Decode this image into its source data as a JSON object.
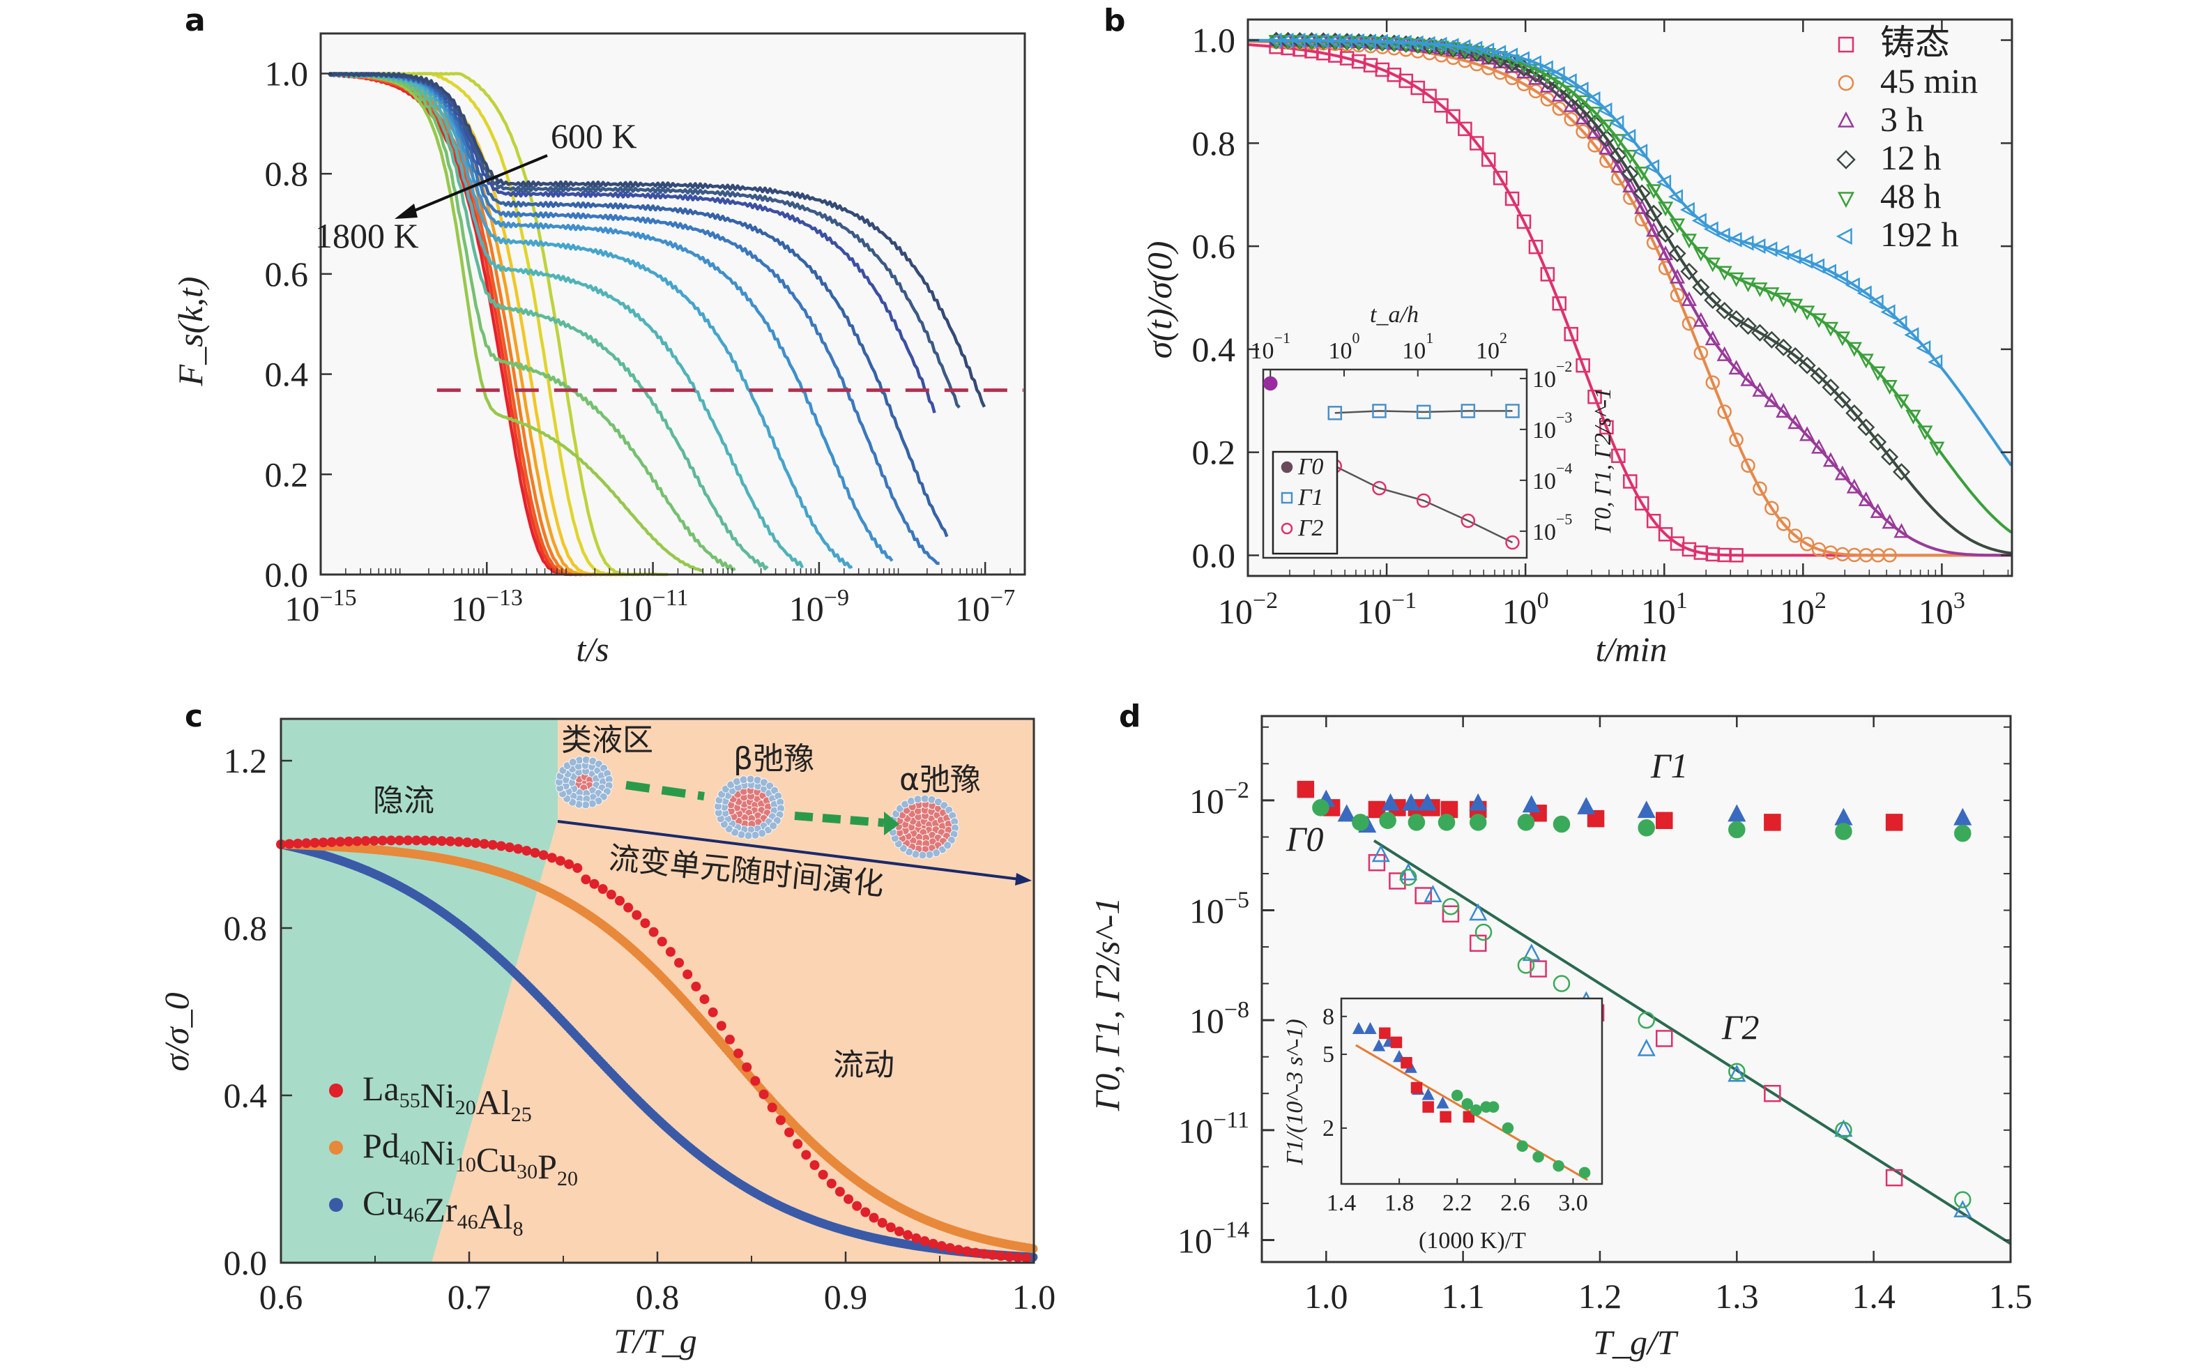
{
  "figure": {
    "panel_labels": [
      "a",
      "b",
      "c",
      "d"
    ]
  },
  "chart_data": [
    {
      "panel": "a",
      "type": "line",
      "xlabel": "t/s",
      "ylabel": "F_s(k,t)",
      "xscale": "log",
      "xlim": [
        1e-15,
        3e-07
      ],
      "ylim": [
        0.0,
        1.08
      ],
      "xticks": [
        "10^-15",
        "10^-13",
        "10^-11",
        "10^-9",
        "10^-7"
      ],
      "xtick_values": [
        -15,
        -13,
        -11,
        -9,
        -7
      ],
      "yticks": [
        "0.0",
        "0.2",
        "0.4",
        "0.6",
        "0.8",
        "1.0"
      ],
      "ytick_values": [
        0.0,
        0.2,
        0.4,
        0.6,
        0.8,
        1.0
      ],
      "annotations": [
        {
          "text": "600 K",
          "kind": "arrow-start"
        },
        {
          "text": "1800 K",
          "kind": "arrow-end"
        }
      ],
      "reference_line": {
        "y": 0.368,
        "style": "dashed",
        "color": "#b03050"
      },
      "series_note": "Temperature series from 1800 K (red, fastest decay) to 600 K (blue, slowest). Values: plateau height and log10 of alpha relaxation time (t where curve crosses 1/e); end = log10 t where curve ends.",
      "series": [
        {
          "name": "1800 K",
          "color": "#e8202a",
          "plateau": 0.0,
          "log_tau": -12.78,
          "end": -11.8
        },
        {
          "name": "c2",
          "color": "#ec3b26",
          "plateau": 0.0,
          "log_tau": -12.74,
          "end": -11.7
        },
        {
          "name": "c3",
          "color": "#f05a22",
          "plateau": 0.0,
          "log_tau": -12.7,
          "end": -11.6
        },
        {
          "name": "c4",
          "color": "#f27b20",
          "plateau": 0.0,
          "log_tau": -12.64,
          "end": -11.5
        },
        {
          "name": "c5",
          "color": "#f5a11f",
          "plateau": 0.0,
          "log_tau": -12.56,
          "end": -11.4
        },
        {
          "name": "c6",
          "color": "#f2c624",
          "plateau": 0.05,
          "log_tau": -12.45,
          "end": -11.3
        },
        {
          "name": "c7",
          "color": "#dfd52c",
          "plateau": 0.1,
          "log_tau": -12.25,
          "end": -11.1
        },
        {
          "name": "c8",
          "color": "#bfd23a",
          "plateau": 0.15,
          "log_tau": -12.05,
          "end": -10.8
        },
        {
          "name": "c9",
          "color": "#96c84b",
          "plateau": 0.35,
          "log_tau": -11.75,
          "end": -10.4
        },
        {
          "name": "c10",
          "color": "#75c070",
          "plateau": 0.45,
          "log_tau": -11.35,
          "end": -10.0
        },
        {
          "name": "c11",
          "color": "#5db99a",
          "plateau": 0.55,
          "log_tau": -10.95,
          "end": -9.6
        },
        {
          "name": "c12",
          "color": "#4fb3b8",
          "plateau": 0.62,
          "log_tau": -10.5,
          "end": -9.2
        },
        {
          "name": "c13",
          "color": "#45a4cc",
          "plateau": 0.67,
          "log_tau": -9.95,
          "end": -8.6
        },
        {
          "name": "c14",
          "color": "#3f8fcc",
          "plateau": 0.7,
          "log_tau": -9.35,
          "end": -8.1
        },
        {
          "name": "c15",
          "color": "#3a77bf",
          "plateau": 0.72,
          "log_tau": -8.85,
          "end": -7.55
        },
        {
          "name": "c16",
          "color": "#3563a8",
          "plateau": 0.74,
          "log_tau": -8.45,
          "end": -7.45
        },
        {
          "name": "c17",
          "color": "#3b4fa4",
          "plateau": 0.76,
          "log_tau": -7.95,
          "end": -7.6
        },
        {
          "name": "c18",
          "color": "#3b5a86",
          "plateau": 0.77,
          "log_tau": -7.65,
          "end": -7.3
        },
        {
          "name": "600 K",
          "color": "#344a78",
          "plateau": 0.78,
          "log_tau": -7.35,
          "end": -7.0
        }
      ]
    },
    {
      "panel": "b",
      "type": "scatter",
      "xlabel": "t/min",
      "ylabel": "σ(t)/σ(0)",
      "xscale": "log",
      "xlim": [
        0.01,
        3200
      ],
      "ylim": [
        -0.04,
        1.04
      ],
      "xticks": [
        "10^-2",
        "10^-1",
        "10^0",
        "10^1",
        "10^2",
        "10^3"
      ],
      "xtick_values": [
        -2,
        -1,
        0,
        1,
        2,
        3
      ],
      "yticks": [
        "0.0",
        "0.2",
        "0.4",
        "0.6",
        "0.8",
        "1.0"
      ],
      "ytick_values": [
        0.0,
        0.2,
        0.4,
        0.6,
        0.8,
        1.0
      ],
      "legend_position": "top-right",
      "series_note": "Double-stretched relaxation: sigma = A*exp(-(t/tau1)^b1) + (1-A)*exp(-(t/tau2)^b2); parameters estimated from curves.",
      "series": [
        {
          "name": "铸态",
          "marker": "square",
          "color": "#e0306a",
          "A": 0.02,
          "tau1": 0.5,
          "b1": 0.6,
          "tau2": 2.6,
          "b2": 0.8,
          "xmin": 0.016,
          "xmax": 35
        },
        {
          "name": "45 min",
          "marker": "circle",
          "color": "#e6884a",
          "A": 0.08,
          "tau1": 1.5,
          "b1": 0.7,
          "tau2": 20,
          "b2": 0.75,
          "xmin": 0.016,
          "xmax": 500
        },
        {
          "name": "3 h",
          "marker": "triangle-up",
          "color": "#9a3a9a",
          "A": 0.22,
          "tau1": 4,
          "b1": 0.9,
          "tau2": 90,
          "b2": 0.65,
          "xmin": 0.016,
          "xmax": 600
        },
        {
          "name": "12 h",
          "marker": "diamond",
          "color": "#3a4a40",
          "A": 0.28,
          "tau1": 5,
          "b1": 0.9,
          "tau2": 170,
          "b2": 0.62,
          "xmin": 0.016,
          "xmax": 600
        },
        {
          "name": "48 h",
          "marker": "triangle-down",
          "color": "#3aa03a",
          "A": 0.32,
          "tau1": 5,
          "b1": 0.9,
          "tau2": 330,
          "b2": 0.6,
          "xmin": 0.016,
          "xmax": 1000
        },
        {
          "name": "192 h",
          "marker": "triangle-left",
          "color": "#3a9ad8",
          "A": 0.36,
          "tau1": 6,
          "b1": 0.95,
          "tau2": 650,
          "b2": 0.58,
          "xmin": 0.016,
          "xmax": 1000
        }
      ],
      "inset": {
        "xlabel": "t_a/h",
        "ylabel": "Γ0, Γ1, Γ2/s^-1",
        "xscale": "log",
        "yscale": "log",
        "xlim": [
          0.08,
          300
        ],
        "ylim": [
          3e-06,
          0.015
        ],
        "xticks": [
          "10^-1",
          "10^0",
          "10^1",
          "10^2"
        ],
        "xtick_values": [
          -1,
          0,
          1,
          2
        ],
        "yticks": [
          "10^-2",
          "10^-3",
          "10^-4",
          "10^-5"
        ],
        "ytick_values": [
          -2,
          -3,
          -4,
          -5
        ],
        "legend": [
          "Γ0",
          "Γ1",
          "Γ2"
        ],
        "series": [
          {
            "name": "Γ0",
            "marker": "filled-circle",
            "color": "#9a2aa0",
            "x": [
              0.1
            ],
            "y": [
              0.008
            ]
          },
          {
            "name": "Γ1",
            "marker": "square",
            "color": "#4a90c8",
            "x": [
              0.75,
              3,
              12,
              48,
              192
            ],
            "y": [
              0.0021,
              0.0023,
              0.0022,
              0.0023,
              0.0023
            ]
          },
          {
            "name": "Γ2",
            "marker": "circle",
            "color": "#e0306a",
            "x": [
              0.75,
              3,
              12,
              48,
              192
            ],
            "y": [
              0.00019,
              7e-05,
              4e-05,
              1.6e-05,
              6e-06
            ]
          }
        ]
      }
    },
    {
      "panel": "c",
      "type": "scatter",
      "xlabel": "T/T_g",
      "ylabel": "σ/σ_0",
      "xlim": [
        0.6,
        1.0
      ],
      "ylim": [
        0.0,
        1.3
      ],
      "xticks": [
        "0.6",
        "0.7",
        "0.8",
        "0.9",
        "1.0"
      ],
      "xtick_values": [
        0.6,
        0.7,
        0.8,
        0.9,
        1.0
      ],
      "yticks": [
        "0.0",
        "0.4",
        "0.8",
        "1.2"
      ],
      "ytick_values": [
        0.0,
        0.4,
        0.8,
        1.2
      ],
      "regions": [
        {
          "label": "隐流",
          "color": "#a8dcc8"
        },
        {
          "label": "流动",
          "color": "#fbd4b4"
        }
      ],
      "annotations": [
        "类液区",
        "β弛豫",
        "α弛豫",
        "流变单元随时间演化"
      ],
      "legend_position": "lower-left",
      "series": [
        {
          "name": "La55Ni20Al25",
          "base": "La",
          "parts": [
            [
              "La",
              "55"
            ],
            [
              "Ni",
              "20"
            ],
            [
              "Al",
              "25"
            ]
          ],
          "color": "#e0202a",
          "x50": 0.843,
          "width": 0.034,
          "xstart": 0.6
        },
        {
          "name": "Pd40Ni10Cu30P20",
          "parts": [
            [
              "Pd",
              "40"
            ],
            [
              "Ni",
              "10"
            ],
            [
              "Cu",
              "30"
            ],
            [
              "P",
              "20"
            ]
          ],
          "color": "#e8883a",
          "x50": 0.838,
          "width": 0.048,
          "xstart": 0.6
        },
        {
          "name": "Cu46Zr46Al8",
          "parts": [
            [
              "Cu",
              "46"
            ],
            [
              "Zr",
              "46"
            ],
            [
              "Al",
              "8"
            ]
          ],
          "color": "#3a5aa8",
          "x50": 0.76,
          "width": 0.055,
          "xstart": 0.6
        }
      ]
    },
    {
      "panel": "d",
      "type": "scatter",
      "xlabel": "T_g/T",
      "ylabel": "Γ0, Γ1, Γ2/s^-1",
      "yscale": "log",
      "xlim": [
        0.953,
        1.5
      ],
      "ylim_log10": [
        -14.6,
        0.3
      ],
      "xticks": [
        "1.0",
        "1.1",
        "1.2",
        "1.3",
        "1.4",
        "1.5"
      ],
      "xtick_values": [
        1.0,
        1.1,
        1.2,
        1.3,
        1.4,
        1.5
      ],
      "yticks": [
        "10^-2",
        "10^-5",
        "10^-8",
        "10^-11",
        "10^-14"
      ],
      "ytick_values": [
        -2,
        -5,
        -8,
        -11,
        -14
      ],
      "annotations": [
        "Γ1",
        "Γ0",
        "Γ2"
      ],
      "fit_line": {
        "x": [
          1.035,
          1.5
        ],
        "log10_y": [
          -3.1,
          -14.1
        ],
        "color": "#2a6a50"
      },
      "series": [
        {
          "name": "Γ1 red squares",
          "marker": "filled-square",
          "color": "#e0202a",
          "x": [
            0.985,
            1.004,
            1.037,
            1.052,
            1.066,
            1.077,
            1.09,
            1.111,
            1.155,
            1.197,
            1.247,
            1.326,
            1.415
          ],
          "log10_y": [
            -1.7,
            -2.2,
            -2.25,
            -2.2,
            -2.2,
            -2.2,
            -2.25,
            -2.25,
            -2.35,
            -2.5,
            -2.55,
            -2.6,
            -2.6
          ]
        },
        {
          "name": "Γ1 blue triangles",
          "marker": "filled-triangle",
          "color": "#3a6ac0",
          "x": [
            1.0,
            1.015,
            1.03,
            1.047,
            1.062,
            1.074,
            1.111,
            1.15,
            1.19,
            1.234,
            1.3,
            1.378,
            1.465
          ],
          "log10_y": [
            -2.0,
            -2.4,
            -2.7,
            -2.1,
            -2.1,
            -2.1,
            -2.1,
            -2.15,
            -2.2,
            -2.3,
            -2.4,
            -2.5,
            -2.5
          ]
        },
        {
          "name": "Γ1 green circles",
          "marker": "filled-circle",
          "color": "#3aaa5a",
          "x": [
            0.996,
            1.025,
            1.045,
            1.066,
            1.088,
            1.111,
            1.146,
            1.172,
            1.234,
            1.3,
            1.378,
            1.465
          ],
          "log10_y": [
            -2.2,
            -2.6,
            -2.55,
            -2.6,
            -2.6,
            -2.6,
            -2.6,
            -2.65,
            -2.75,
            -2.8,
            -2.85,
            -2.9
          ]
        },
        {
          "name": "Γ0/Γ2 red squares",
          "marker": "square",
          "color": "#e0306a",
          "x": [
            1.037,
            1.052,
            1.071,
            1.091,
            1.111,
            1.155,
            1.197,
            1.247,
            1.326,
            1.415
          ],
          "log10_y": [
            -3.7,
            -4.2,
            -4.6,
            -5.1,
            -5.9,
            -6.6,
            -7.8,
            -8.5,
            -10.0,
            -12.3
          ]
        },
        {
          "name": "Γ0/Γ2 blue triangles",
          "marker": "triangle",
          "color": "#3a8ad0",
          "x": [
            1.04,
            1.06,
            1.078,
            1.111,
            1.15,
            1.19,
            1.234,
            1.3,
            1.378,
            1.465
          ],
          "log10_y": [
            -3.5,
            -4.0,
            -4.6,
            -5.1,
            -6.2,
            -7.5,
            -8.8,
            -9.5,
            -11.0,
            -13.2
          ]
        },
        {
          "name": "Γ0/Γ2 green circles",
          "marker": "circle",
          "color": "#3aaa5a",
          "x": [
            1.06,
            1.091,
            1.115,
            1.146,
            1.172,
            1.234,
            1.3,
            1.378,
            1.465
          ],
          "log10_y": [
            -4.1,
            -4.9,
            -5.6,
            -6.5,
            -7.0,
            -8.0,
            -9.4,
            -11.0,
            -12.9
          ]
        }
      ],
      "inset": {
        "xlabel": "(1000 K)/T",
        "ylabel": "Γ1/(10^-3 s^-1)",
        "xlim": [
          1.4,
          3.2
        ],
        "yscale": "log",
        "ylim": [
          1.0,
          10.0
        ],
        "xticks": [
          "1.4",
          "1.8",
          "2.2",
          "2.6",
          "3.0"
        ],
        "xtick_values": [
          1.4,
          1.8,
          2.2,
          2.6,
          3.0
        ],
        "yticks": [
          "2",
          "5",
          "8"
        ],
        "ytick_values": [
          2,
          5,
          8
        ],
        "fit_line": {
          "x": [
            1.5,
            3.1
          ],
          "y": [
            5.6,
            1.05
          ],
          "color": "#e87a30"
        },
        "series": [
          {
            "name": "blue",
            "marker": "filled-triangle",
            "color": "#3a6ac0",
            "x": [
              1.52,
              1.6,
              1.66,
              1.73,
              1.8,
              1.88,
              1.93,
              2.0,
              2.1
            ],
            "y": [
              6.8,
              6.8,
              5.5,
              5.8,
              4.8,
              4.2,
              3.2,
              3.0,
              2.7
            ]
          },
          {
            "name": "red",
            "marker": "filled-square",
            "color": "#e0202a",
            "x": [
              1.7,
              1.78,
              1.85,
              1.92,
              2.0,
              2.12,
              2.28
            ],
            "y": [
              6.5,
              5.8,
              4.5,
              3.3,
              2.6,
              2.3,
              2.3
            ]
          },
          {
            "name": "green",
            "marker": "filled-circle",
            "color": "#3aaa5a",
            "x": [
              2.2,
              2.27,
              2.33,
              2.4,
              2.45,
              2.55,
              2.65,
              2.76,
              2.9,
              3.08
            ],
            "y": [
              3.0,
              2.7,
              2.5,
              2.6,
              2.6,
              2.0,
              1.6,
              1.4,
              1.25,
              1.15
            ]
          }
        ]
      }
    }
  ]
}
